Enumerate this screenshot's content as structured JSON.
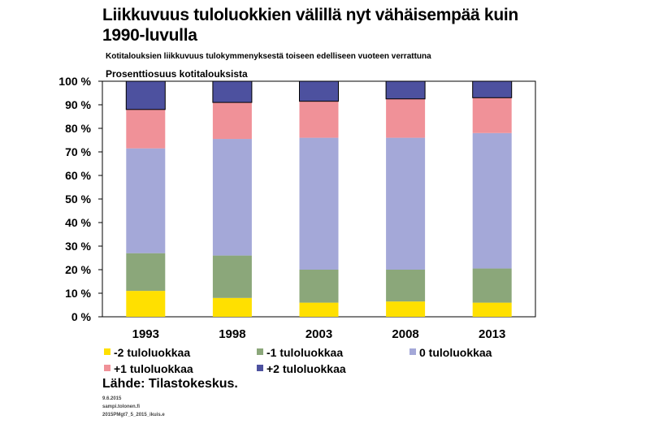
{
  "chart_data": {
    "type": "bar",
    "stacked": true,
    "title": "Liikkuvuus tuloluokkien välillä nyt vähäisempää kuin 1990-luvulla",
    "subtitle": "Kotitalouksien liikkuvuus tulokymmenyksestä toiseen edelliseen vuoteen verrattuna",
    "ylabel": "Prosenttiosuus kotitalouksista",
    "ylim": [
      0,
      100
    ],
    "yticks": [
      "0 %",
      "10 %",
      "20 %",
      "30 %",
      "40 %",
      "50 %",
      "60 %",
      "70 %",
      "80 %",
      "90 %",
      "100 %"
    ],
    "categories": [
      "1993",
      "1998",
      "2003",
      "2008",
      "2013"
    ],
    "series": [
      {
        "name": "-2 tuloluokkaa",
        "color": "#ffe000",
        "values": [
          11,
          8,
          6,
          6.5,
          6
        ]
      },
      {
        "name": "-1 tuloluokkaa",
        "color": "#8ba77a",
        "values": [
          16,
          18,
          14,
          13.5,
          14.5
        ]
      },
      {
        "name": "0 tuloluokkaa",
        "color": "#a4a8d8",
        "values": [
          44.5,
          49.5,
          56,
          56,
          57.5
        ]
      },
      {
        "name": "+1 tuloluokkaa",
        "color": "#f09198",
        "values": [
          16.5,
          15.5,
          15.5,
          16.5,
          15
        ]
      },
      {
        "name": "+2 tuloluokkaa",
        "color": "#4d519f",
        "values": [
          12,
          9,
          8.5,
          7.5,
          7
        ]
      }
    ],
    "legend_position": "bottom",
    "grid": false
  },
  "source": "Lähde:  Tilastokeskus.",
  "footer": {
    "date": "9.6.2015",
    "line2": "sampi.tolonen.fi",
    "line3": "2015PMgt7_5_2015_ikuis.e"
  }
}
